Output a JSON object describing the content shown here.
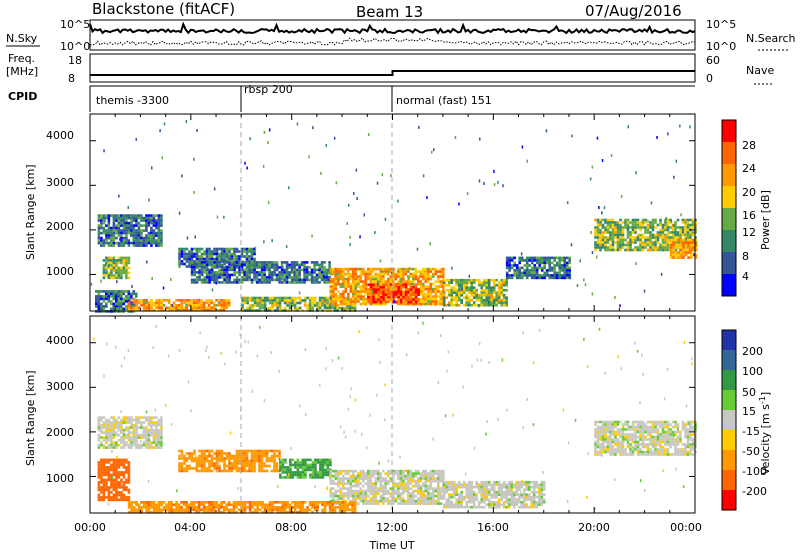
{
  "header": {
    "station": "Blackstone (fitACF)",
    "beam": "Beam 13",
    "date": "07/Aug/2016"
  },
  "noise_panel": {
    "left_label": "N.Sky",
    "left_ticks": [
      "10^5",
      "10^0"
    ],
    "right_label": "N.Search",
    "right_ticks": [
      "10^5",
      "10^0"
    ]
  },
  "freq_panel": {
    "left_label_line1": "Freq.",
    "left_label_line2": "[MHz]",
    "left_ticks": [
      "18",
      "8"
    ],
    "right_label": "Nave",
    "right_ticks": [
      "60",
      "0"
    ]
  },
  "cpid_panel": {
    "label": "CPID",
    "segments": [
      {
        "label": "themis -3300",
        "start_hour": 0
      },
      {
        "label": "rbsp 200",
        "start_hour": 6
      },
      {
        "label": "normal (fast) 151",
        "start_hour": 12
      }
    ]
  },
  "axes": {
    "y_label": "Slant Range [km]",
    "y_ticks": [
      "4000",
      "3000",
      "2000",
      "1000"
    ],
    "x_label": "Time UT",
    "x_ticks": [
      "00:00",
      "04:00",
      "08:00",
      "12:00",
      "16:00",
      "20:00",
      "00:00"
    ]
  },
  "power_colorbar": {
    "label": "Power [dB]",
    "ticks": [
      "28",
      "24",
      "20",
      "16",
      "12",
      "8",
      "4"
    ],
    "colors": [
      "#ff0000",
      "#ff6600",
      "#ff9900",
      "#ffcc00",
      "#66aa44",
      "#338866",
      "#335599",
      "#0000ff"
    ]
  },
  "velocity_colorbar": {
    "label_main": "Velocity [m s",
    "label_sup": "-1",
    "label_end": "]",
    "ticks": [
      "200",
      "100",
      "50",
      "15",
      "-15",
      "-50",
      "-100",
      "-200"
    ],
    "colors": [
      "#2233aa",
      "#336699",
      "#339944",
      "#66cc33",
      "#c8c8c0",
      "#ffcc00",
      "#ff9900",
      "#ff6600",
      "#ff0000"
    ]
  },
  "chart_data": [
    {
      "type": "heatmap",
      "title": "Power",
      "xlabel": "Time UT",
      "ylabel": "Slant Range [km]",
      "xlim": [
        0,
        24
      ],
      "ylim": [
        180,
        4600
      ],
      "colorbar": "Power [dB]",
      "regions": [
        {
          "t0": 0.3,
          "t1": 2.8,
          "r0": 1650,
          "r1": 2350,
          "level": 1
        },
        {
          "t0": 0.5,
          "t1": 1.5,
          "r0": 900,
          "r1": 1400,
          "level": 2
        },
        {
          "t0": 0.2,
          "t1": 1.8,
          "r0": 200,
          "r1": 650,
          "level": 1
        },
        {
          "t0": 1.5,
          "t1": 5.5,
          "r0": 200,
          "r1": 450,
          "level": 3
        },
        {
          "t0": 3.5,
          "t1": 6.5,
          "r0": 1200,
          "r1": 1600,
          "level": 1
        },
        {
          "t0": 4.0,
          "t1": 9.5,
          "r0": 800,
          "r1": 1300,
          "level": 1
        },
        {
          "t0": 6.0,
          "t1": 10.5,
          "r0": 200,
          "r1": 500,
          "level": 2
        },
        {
          "t0": 9.5,
          "t1": 14.0,
          "r0": 350,
          "r1": 1150,
          "level": 3
        },
        {
          "t0": 11.0,
          "t1": 13.0,
          "r0": 400,
          "r1": 800,
          "level": 4
        },
        {
          "t0": 14.0,
          "t1": 16.5,
          "r0": 300,
          "r1": 900,
          "level": 2
        },
        {
          "t0": 16.5,
          "t1": 19.0,
          "r0": 900,
          "r1": 1400,
          "level": 1
        },
        {
          "t0": 20.0,
          "t1": 24.0,
          "r0": 1550,
          "r1": 2250,
          "level": 2
        },
        {
          "t0": 23.0,
          "t1": 24.0,
          "r0": 1400,
          "r1": 1800,
          "level": 3
        }
      ]
    },
    {
      "type": "heatmap",
      "title": "Velocity",
      "xlabel": "Time UT",
      "ylabel": "Slant Range [km]",
      "xlim": [
        0,
        24
      ],
      "ylim": [
        180,
        4600
      ],
      "colorbar": "Velocity [m s-1]",
      "regions": [
        {
          "t0": 0.3,
          "t1": 2.8,
          "r0": 1650,
          "r1": 2350,
          "vel": 0
        },
        {
          "t0": 0.3,
          "t1": 1.5,
          "r0": 500,
          "r1": 1400,
          "vel": -100
        },
        {
          "t0": 1.5,
          "t1": 6.0,
          "r0": 200,
          "r1": 450,
          "vel": -60
        },
        {
          "t0": 3.5,
          "t1": 7.5,
          "r0": 1100,
          "r1": 1600,
          "vel": -60
        },
        {
          "t0": 7.5,
          "t1": 9.5,
          "r0": 1000,
          "r1": 1400,
          "vel": 40
        },
        {
          "t0": 9.5,
          "t1": 14.0,
          "r0": 400,
          "r1": 1150,
          "vel": 0
        },
        {
          "t0": 14.0,
          "t1": 18.0,
          "r0": 300,
          "r1": 900,
          "vel": 0
        },
        {
          "t0": 20.0,
          "t1": 24.0,
          "r0": 1500,
          "r1": 2250,
          "vel": 0
        },
        {
          "t0": 6.0,
          "t1": 10.5,
          "r0": 200,
          "r1": 450,
          "vel": -60
        }
      ]
    }
  ]
}
